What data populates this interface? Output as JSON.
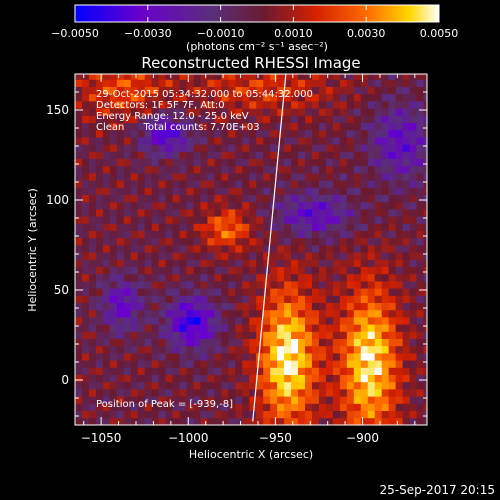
{
  "chart_data": {
    "type": "heatmap",
    "title": "Reconstructed RHESSI Image",
    "xlabel": "Heliocentric X (arcsec)",
    "ylabel": "Heliocentric Y (arcsec)",
    "xlim": [
      -1065,
      -863
    ],
    "ylim": [
      -25,
      170
    ],
    "xticks": [
      -1050,
      -1000,
      -950,
      -900
    ],
    "yticks": [
      0,
      50,
      100,
      150
    ],
    "xtick_labels": [
      "−1050",
      "−1000",
      "−950",
      "−900"
    ],
    "ytick_labels": [
      "0",
      "50",
      "100",
      "150"
    ],
    "colorbar": {
      "ticks": [
        -0.005,
        -0.003,
        -0.001,
        0.001,
        0.003,
        0.005
      ],
      "tick_labels": [
        "−0.0050",
        "−0.0030",
        "−0.0010",
        "0.0010",
        "0.0030",
        "0.0050"
      ],
      "unit_label": "(photons cm⁻² s⁻¹ asec⁻²)",
      "range": [
        -0.005,
        0.005
      ],
      "colors": [
        "#0000ff",
        "#6a00cc",
        "#5a2f7a",
        "#6a1a30",
        "#d42000",
        "#ff6a00",
        "#ffd800",
        "#ffffff"
      ]
    },
    "annotations": [
      "29-Oct-2015 05:34:32.000 to 05:44:32.000",
      "Detectors: 1F 5F 7F, Att:0",
      "Energy Range: 12.0 - 25.0 keV",
      "Clean      Total counts: 7.70E+03"
    ],
    "peak_label": "Position of Peak = [-939,-8]",
    "peak": [
      -939,
      -8
    ],
    "limb_line": [
      [
        -963,
        -23
      ],
      [
        -944,
        170
      ]
    ],
    "features": [
      {
        "x": -945,
        "y": 10,
        "sigma_x": 12,
        "sigma_y": 28,
        "amp": 0.0048
      },
      {
        "x": -898,
        "y": 8,
        "sigma_x": 12,
        "sigma_y": 30,
        "amp": 0.0046
      },
      {
        "x": -980,
        "y": 82,
        "sigma_x": 10,
        "sigma_y": 8,
        "amp": 0.0028
      },
      {
        "x": -1040,
        "y": 160,
        "sigma_x": 18,
        "sigma_y": 12,
        "amp": 0.0022
      },
      {
        "x": -960,
        "y": 160,
        "sigma_x": 30,
        "sigma_y": 10,
        "amp": 0.0018
      },
      {
        "x": -1000,
        "y": 30,
        "sigma_x": 10,
        "sigma_y": 10,
        "amp": -0.0042
      },
      {
        "x": -1040,
        "y": 40,
        "sigma_x": 8,
        "sigma_y": 10,
        "amp": -0.003
      },
      {
        "x": -1015,
        "y": 135,
        "sigma_x": 10,
        "sigma_y": 8,
        "amp": -0.0035
      },
      {
        "x": -930,
        "y": 90,
        "sigma_x": 15,
        "sigma_y": 8,
        "amp": -0.003
      },
      {
        "x": -880,
        "y": 130,
        "sigma_x": 12,
        "sigma_y": 15,
        "amp": -0.0028
      }
    ]
  },
  "footer": {
    "timestamp": "25-Sep-2017 20:15"
  }
}
